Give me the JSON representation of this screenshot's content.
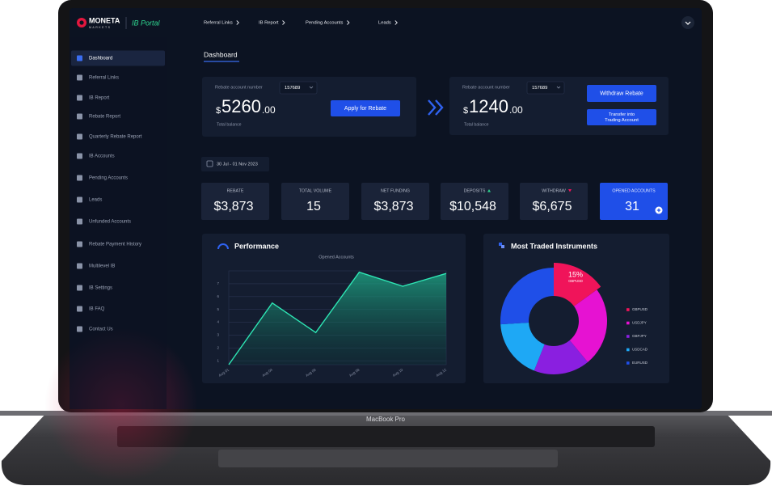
{
  "header": {
    "brand": "MONETA",
    "brand_sub": "MARKETS",
    "portal": "IB Portal",
    "nav": [
      "Referral Links",
      "IB Report",
      "Pending Accounts",
      "Leads"
    ]
  },
  "sidebar": {
    "active": 0,
    "items": [
      "Dashboard",
      "Referral Links",
      "IB Report",
      "Rebate Report",
      "Quarterly Rebate Report",
      "IB Accounts",
      "Pending Accounts",
      "Leads",
      "Unfunded Accounts",
      "Rebate Payment History",
      "Multilevel IB",
      "IB Settings",
      "IB FAQ",
      "Contact Us"
    ]
  },
  "page_title": "Dashboard",
  "rebate_cards": [
    {
      "label": "Rebate account number",
      "account": "157689",
      "currency": "$",
      "amount": "5260",
      "decimals": ".00",
      "caption": "Total balance",
      "buttons": [
        [
          "Apply for Rebate"
        ]
      ]
    },
    {
      "label": "Rebate account number",
      "account": "157689",
      "currency": "$",
      "amount": "1240",
      "decimals": ".00",
      "caption": "Total balance",
      "buttons": [
        [
          "Withdraw Rebate"
        ],
        [
          "Transfer into",
          "Trading Account"
        ]
      ]
    }
  ],
  "date_range": "30 Jul - 01 Nov 2023",
  "stats": [
    {
      "label": "REBATE",
      "value": "$3,873"
    },
    {
      "label": "TOTAL VOLUME",
      "value": "15"
    },
    {
      "label": "NET FUNDING",
      "value": "$3,873"
    },
    {
      "label": "DEPOSITS",
      "value": "$10,548"
    },
    {
      "label": "WITHDRAW",
      "value": "$6,675"
    },
    {
      "label": "OPENED ACCOUNTS",
      "value": "31"
    }
  ],
  "chart_data": [
    {
      "type": "line",
      "title": "Performance",
      "subtitle": "Opened Accounts",
      "categories": [
        "Aug 01",
        "Aug 04",
        "Aug 06",
        "Aug 08",
        "Aug 10",
        "Aug 12"
      ],
      "values": [
        0.7,
        5.5,
        3.2,
        7.9,
        6.8,
        7.8
      ],
      "color": "#2ee6b4",
      "ylim": [
        0.7,
        8
      ],
      "yticks": [
        1,
        2,
        3,
        4,
        5,
        6,
        7
      ],
      "grid": true
    },
    {
      "type": "pie",
      "title": "Most Traded Instruments",
      "categories": [
        "GBPUSD",
        "USDJPY",
        "GBPJPY",
        "USDCAD",
        "EURUSD"
      ],
      "values": [
        15,
        24,
        17,
        18,
        26
      ],
      "value_labels": [
        "15%",
        null,
        null,
        null,
        null
      ],
      "colors": [
        "#f0145a",
        "#e612d2",
        "#8a1fe0",
        "#1ea8f5",
        "#1f4fe8"
      ],
      "donut": true
    }
  ],
  "device_label": "MacBook Pro"
}
